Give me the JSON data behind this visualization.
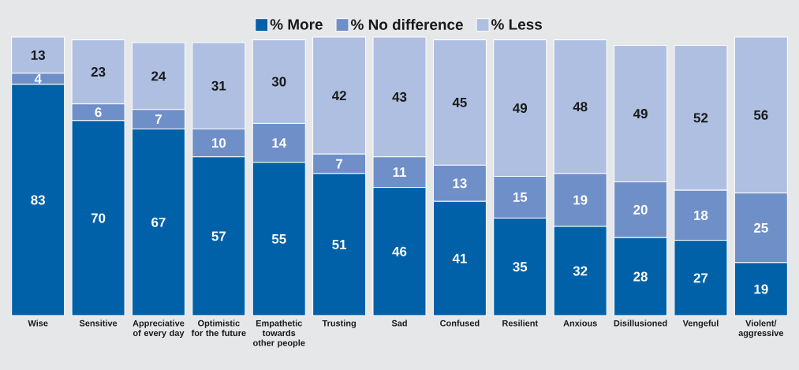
{
  "chart_data": {
    "type": "bar",
    "stacked": true,
    "data_labels": true,
    "legend": "top",
    "categories": [
      "Wise",
      "Sensitive",
      "Appreciative of every day",
      "Optimistic for the future",
      "Empathetic towards other people",
      "Trusting",
      "Sad",
      "Confused",
      "Resilient",
      "Anxious",
      "Disillusioned",
      "Vengeful",
      "Violent/ aggressive"
    ],
    "series": [
      {
        "name": "% More",
        "color": "#0061a8",
        "values": [
          83,
          70,
          67,
          57,
          55,
          51,
          46,
          41,
          35,
          32,
          28,
          27,
          19
        ]
      },
      {
        "name": "% No difference",
        "color": "#6f8fc9",
        "values": [
          4,
          6,
          7,
          10,
          14,
          7,
          11,
          13,
          15,
          19,
          20,
          18,
          25
        ]
      },
      {
        "name": "% Less",
        "color": "#aebfe1",
        "values": [
          13,
          23,
          24,
          31,
          30,
          42,
          43,
          45,
          49,
          48,
          49,
          52,
          56
        ]
      }
    ]
  }
}
